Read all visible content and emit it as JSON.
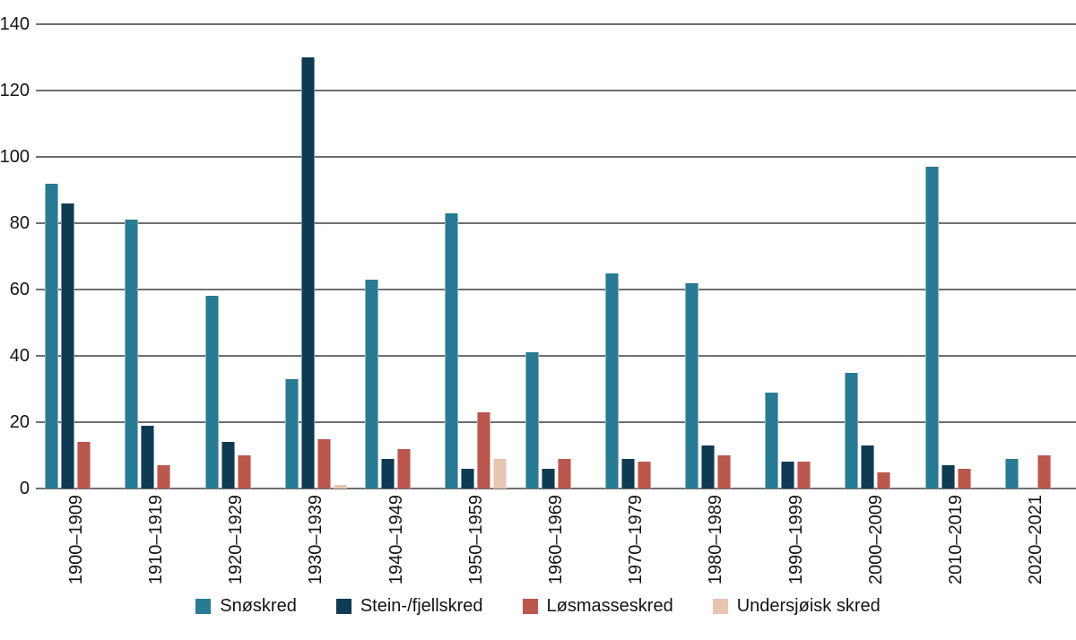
{
  "chart_data": {
    "type": "bar",
    "title": "",
    "xlabel": "",
    "ylabel": "",
    "categories": [
      "1900–1909",
      "1910–1919",
      "1920–1929",
      "1930–1939",
      "1940–1949",
      "1950–1959",
      "1960–1969",
      "1970–1979",
      "1980–1989",
      "1990–1999",
      "2000–2009",
      "2010–2019",
      "2020–2021"
    ],
    "series": [
      {
        "name": "Snøskred",
        "color": "#277b94",
        "values": [
          92,
          81,
          58,
          33,
          63,
          83,
          41,
          65,
          62,
          29,
          35,
          97,
          9
        ]
      },
      {
        "name": "Stein-/fjellskred",
        "color": "#0e3a53",
        "values": [
          86,
          19,
          14,
          130,
          9,
          6,
          6,
          9,
          13,
          8,
          13,
          7,
          0
        ]
      },
      {
        "name": "Løsmasseskred",
        "color": "#bb574d",
        "values": [
          14,
          7,
          10,
          15,
          12,
          23,
          9,
          8,
          10,
          8,
          5,
          6,
          10
        ]
      },
      {
        "name": "Undersjøisk skred",
        "color": "#e8c5b0",
        "values": [
          0,
          0,
          0,
          1,
          0,
          9,
          0,
          0,
          0,
          0,
          0,
          0,
          0
        ]
      }
    ],
    "ylim": [
      0,
      140
    ],
    "yticks": [
      0,
      20,
      40,
      60,
      80,
      100,
      120,
      140
    ],
    "grid": "horizontal-only",
    "legend_position": "bottom",
    "x_tick_rotation_degrees": 90
  },
  "colors": {
    "background": "#ffffff",
    "gridline": "#6f6f6f",
    "text": "#141414"
  }
}
